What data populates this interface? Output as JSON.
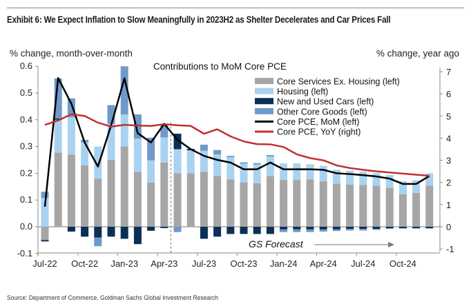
{
  "header": {
    "title": "Exhibit 6: We Expect Inflation to Slow Meaningfully in 2023H2 as Shelter Decelerates and Car Prices Fall"
  },
  "footer": {
    "source": "Source: Department of Commerce, Goldman Sachs Global Investment Research"
  },
  "chart_data": {
    "type": "bar",
    "title": "Contributions to MoM Core PCE",
    "ylabel_left": "% change, month-over-month",
    "ylabel_right": "% change, year ago",
    "ylim_left": [
      -0.1,
      0.6
    ],
    "ylim_right": [
      -1,
      7
    ],
    "left_ticks": [
      "-0.1",
      "0.0",
      "0.1",
      "0.2",
      "0.3",
      "0.4",
      "0.5",
      "0.6"
    ],
    "right_ticks": [
      "-1",
      "0",
      "1",
      "2",
      "3",
      "4",
      "5",
      "6",
      "7"
    ],
    "x_tick_labels": [
      "Jul-22",
      "Oct-22",
      "Jan-23",
      "Apr-23",
      "Jul-23",
      "Oct-23",
      "Jan-24",
      "Apr-24",
      "Jul-24",
      "Oct-24"
    ],
    "forecast_label": "GS Forecast",
    "forecast_start": "May-23",
    "categories": [
      "Jul-22",
      "Aug-22",
      "Sep-22",
      "Oct-22",
      "Nov-22",
      "Dec-22",
      "Jan-23",
      "Feb-23",
      "Mar-23",
      "Apr-23",
      "May-23",
      "Jun-23",
      "Jul-23",
      "Aug-23",
      "Sep-23",
      "Oct-23",
      "Nov-23",
      "Dec-23",
      "Jan-24",
      "Feb-24",
      "Mar-24",
      "Apr-24",
      "May-24",
      "Jun-24",
      "Jul-24",
      "Aug-24",
      "Sep-24",
      "Oct-24",
      "Nov-24",
      "Dec-24"
    ],
    "series": [
      {
        "name": "Core Services Ex. Housing (left)",
        "type": "bar",
        "color": "#a6a6a6",
        "values": [
          -0.05,
          0.277,
          0.27,
          0.23,
          0.18,
          0.25,
          0.3,
          0.205,
          0.165,
          0.24,
          0.2,
          0.2,
          0.205,
          0.19,
          0.177,
          0.165,
          0.163,
          0.19,
          0.175,
          0.175,
          0.177,
          0.17,
          0.161,
          0.158,
          0.156,
          0.154,
          0.146,
          0.122,
          0.127,
          0.154
        ]
      },
      {
        "name": "Housing (left)",
        "type": "bar",
        "color": "#a9d2f0",
        "values": [
          0.108,
          0.123,
          0.14,
          0.085,
          0.12,
          0.135,
          0.12,
          0.125,
          0.083,
          0.094,
          0.09,
          0.086,
          0.079,
          0.08,
          0.083,
          0.071,
          0.07,
          0.073,
          0.062,
          0.062,
          0.057,
          0.058,
          0.052,
          0.052,
          0.05,
          0.046,
          0.048,
          0.048,
          0.047,
          0.046
        ]
      },
      {
        "name": "New and Used Cars (left)",
        "type": "bar",
        "color": "#0b2f55",
        "values": [
          -0.005,
          0.005,
          -0.018,
          -0.037,
          -0.04,
          -0.037,
          -0.045,
          -0.065,
          -0.015,
          -0.005,
          0.058,
          0.005,
          -0.045,
          -0.037,
          -0.027,
          -0.027,
          -0.027,
          -0.027,
          -0.01,
          -0.01,
          -0.01,
          -0.01,
          -0.01,
          -0.008,
          -0.008,
          -0.008,
          -0.006,
          -0.006,
          -0.006,
          -0.006
        ]
      },
      {
        "name": "Other Core Goods (left)",
        "type": "bar",
        "color": "#7099c8",
        "values": [
          0.023,
          0.15,
          0.07,
          0.01,
          -0.033,
          0.07,
          0.18,
          0.09,
          0.085,
          0.05,
          -0.02,
          0.0,
          0.023,
          0.017,
          0.005,
          0.005,
          0.005,
          0.005,
          -0.01,
          -0.01,
          -0.01,
          -0.008,
          -0.006,
          -0.006,
          -0.006,
          -0.004,
          -0.002,
          0.0,
          0.0,
          0.0
        ]
      },
      {
        "name": "Core PCE, MoM (left)",
        "type": "line",
        "color": "#000000",
        "values": [
          0.075,
          0.556,
          0.46,
          0.315,
          0.225,
          0.38,
          0.555,
          0.35,
          0.315,
          0.385,
          0.325,
          0.29,
          0.265,
          0.25,
          0.24,
          0.215,
          0.215,
          0.24,
          0.215,
          0.215,
          0.215,
          0.213,
          0.2,
          0.197,
          0.193,
          0.188,
          0.18,
          0.16,
          0.16,
          0.19
        ]
      },
      {
        "name": "Core PCE, YoY (right)",
        "type": "line",
        "color": "#c0302e",
        "values": [
          4.6,
          4.8,
          5.08,
          5.0,
          4.7,
          4.52,
          4.6,
          4.57,
          4.55,
          4.63,
          4.58,
          4.55,
          4.2,
          4.4,
          4.08,
          3.85,
          3.73,
          3.72,
          3.6,
          3.27,
          3.1,
          3.0,
          2.77,
          2.65,
          2.57,
          2.5,
          2.45,
          2.4,
          2.35,
          2.3
        ]
      }
    ]
  }
}
